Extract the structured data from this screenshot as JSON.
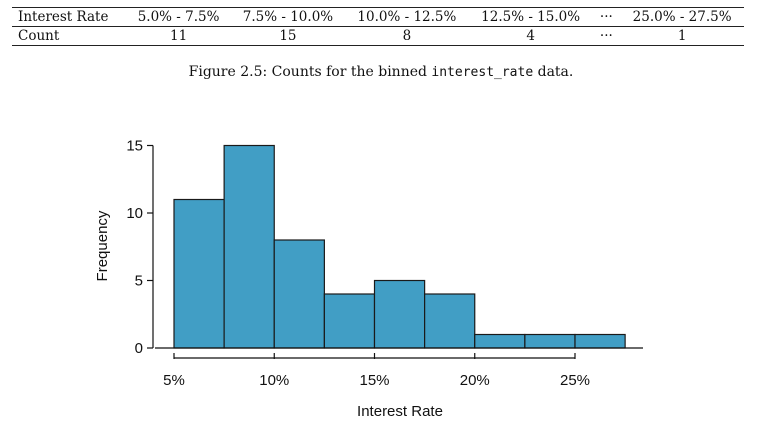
{
  "table": {
    "row_header": "Interest Rate",
    "count_header": "Count",
    "bins": [
      "5.0% - 7.5%",
      "7.5% - 10.0%",
      "10.0% - 12.5%",
      "12.5% - 15.0%",
      "···",
      "25.0% - 27.5%"
    ],
    "counts": [
      "11",
      "15",
      "8",
      "4",
      "···",
      "1"
    ]
  },
  "caption": {
    "prefix": "Figure 2.5: Counts for the binned ",
    "code": "interest_rate",
    "suffix": " data."
  },
  "chart_data": {
    "type": "bar",
    "bin_edges": [
      5,
      7.5,
      10,
      12.5,
      15,
      17.5,
      20,
      22.5,
      25,
      27.5
    ],
    "values": [
      11,
      15,
      8,
      4,
      5,
      4,
      1,
      1,
      1
    ],
    "xlabel": "Interest Rate",
    "ylabel": "Frequency",
    "xticks": [
      5,
      10,
      15,
      20,
      25
    ],
    "xtick_labels": [
      "5%",
      "10%",
      "15%",
      "20%",
      "25%"
    ],
    "yticks": [
      0,
      5,
      10,
      15
    ],
    "ylim": [
      0,
      15
    ],
    "grid": false,
    "bar_color": "#419ec5",
    "bar_edge_color": "#1a1a1a"
  }
}
